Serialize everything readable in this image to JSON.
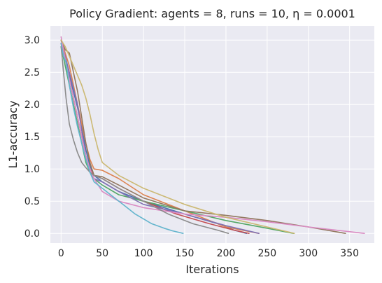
{
  "chart_data": {
    "type": "line",
    "title": "Policy Gradient: agents = 8, runs = 10, η = 0.0001",
    "xlabel": "Iterations",
    "ylabel": "L1-accuracy",
    "xlim": [
      -13,
      380
    ],
    "ylim": [
      -0.15,
      3.22
    ],
    "xticks": [
      0,
      50,
      100,
      150,
      200,
      250,
      300,
      350
    ],
    "yticks": [
      0.0,
      0.5,
      1.0,
      1.5,
      2.0,
      2.5,
      3.0
    ],
    "ytick_labels": [
      "0.0",
      "0.5",
      "1.0",
      "1.5",
      "2.0",
      "2.5",
      "3.0"
    ],
    "grid": true,
    "background": "#eaeaf2",
    "series": [
      {
        "color": "#4c72b0",
        "x": [
          0,
          5,
          10,
          15,
          20,
          25,
          30,
          35,
          40,
          50,
          70,
          100,
          150,
          190,
          210,
          225
        ],
        "y": [
          2.95,
          2.7,
          2.45,
          2.2,
          1.95,
          1.65,
          1.3,
          1.05,
          0.9,
          0.8,
          0.65,
          0.5,
          0.3,
          0.15,
          0.05,
          0.0
        ]
      },
      {
        "color": "#dd8452",
        "x": [
          0,
          5,
          10,
          15,
          20,
          25,
          30,
          35,
          40,
          50,
          70,
          100,
          150,
          200,
          240
        ],
        "y": [
          3.0,
          2.8,
          2.6,
          2.3,
          2.0,
          1.7,
          1.4,
          1.15,
          1.0,
          0.98,
          0.85,
          0.6,
          0.35,
          0.1,
          0.0
        ]
      },
      {
        "color": "#55a868",
        "x": [
          0,
          5,
          10,
          15,
          20,
          25,
          30,
          35,
          40,
          50,
          70,
          100,
          150,
          200,
          250,
          282
        ],
        "y": [
          2.9,
          2.6,
          2.3,
          2.0,
          1.7,
          1.4,
          1.1,
          0.95,
          0.85,
          0.75,
          0.6,
          0.5,
          0.35,
          0.2,
          0.08,
          0.0
        ]
      },
      {
        "color": "#c44e52",
        "x": [
          0,
          5,
          10,
          15,
          20,
          25,
          30,
          35,
          40,
          50,
          70,
          100,
          140,
          180,
          210,
          228
        ],
        "y": [
          2.95,
          2.7,
          2.4,
          2.1,
          1.8,
          1.5,
          1.2,
          1.0,
          0.9,
          0.85,
          0.7,
          0.5,
          0.3,
          0.15,
          0.05,
          0.0
        ]
      },
      {
        "color": "#8172b3",
        "x": [
          0,
          5,
          10,
          15,
          20,
          25,
          30,
          35,
          40,
          50,
          70,
          100,
          150,
          200,
          240
        ],
        "y": [
          3.0,
          2.75,
          2.5,
          2.25,
          2.0,
          1.6,
          1.2,
          0.95,
          0.85,
          0.8,
          0.65,
          0.45,
          0.3,
          0.12,
          0.0
        ]
      },
      {
        "color": "#937860",
        "x": [
          0,
          5,
          10,
          15,
          20,
          25,
          30,
          35,
          40,
          50,
          70,
          100,
          150,
          200,
          250,
          300,
          345
        ],
        "y": [
          3.0,
          2.85,
          2.8,
          2.5,
          2.2,
          1.8,
          1.4,
          1.1,
          0.9,
          0.88,
          0.75,
          0.55,
          0.35,
          0.28,
          0.2,
          0.1,
          0.0
        ]
      },
      {
        "color": "#da8bc3",
        "x": [
          0,
          5,
          10,
          15,
          20,
          25,
          30,
          35,
          40,
          45,
          50,
          70,
          100,
          150,
          200,
          250,
          300,
          368
        ],
        "y": [
          3.05,
          2.7,
          2.4,
          2.1,
          1.8,
          1.5,
          1.2,
          1.0,
          0.85,
          0.75,
          0.65,
          0.5,
          0.4,
          0.3,
          0.25,
          0.18,
          0.1,
          0.0
        ]
      },
      {
        "color": "#8c8c8c",
        "x": [
          0,
          3,
          6,
          10,
          15,
          20,
          25,
          30,
          35,
          40,
          50,
          70,
          100,
          130,
          160,
          190,
          203
        ],
        "y": [
          2.9,
          2.5,
          2.1,
          1.7,
          1.45,
          1.25,
          1.1,
          1.02,
          0.95,
          0.9,
          0.85,
          0.7,
          0.5,
          0.3,
          0.15,
          0.05,
          0.0
        ]
      },
      {
        "color": "#ccb974",
        "x": [
          0,
          5,
          10,
          15,
          20,
          25,
          30,
          35,
          40,
          45,
          50,
          60,
          70,
          100,
          150,
          200,
          250,
          283
        ],
        "y": [
          3.0,
          2.9,
          2.75,
          2.6,
          2.45,
          2.3,
          2.1,
          1.85,
          1.55,
          1.3,
          1.1,
          1.0,
          0.9,
          0.7,
          0.45,
          0.25,
          0.1,
          0.0
        ]
      },
      {
        "color": "#64b5cd",
        "x": [
          0,
          3,
          6,
          10,
          15,
          20,
          25,
          30,
          35,
          40,
          50,
          60,
          75,
          90,
          110,
          125,
          135,
          148
        ],
        "y": [
          2.95,
          2.75,
          2.65,
          2.3,
          1.95,
          1.65,
          1.4,
          1.15,
          0.95,
          0.8,
          0.7,
          0.6,
          0.45,
          0.3,
          0.15,
          0.08,
          0.04,
          0.0
        ]
      }
    ]
  }
}
